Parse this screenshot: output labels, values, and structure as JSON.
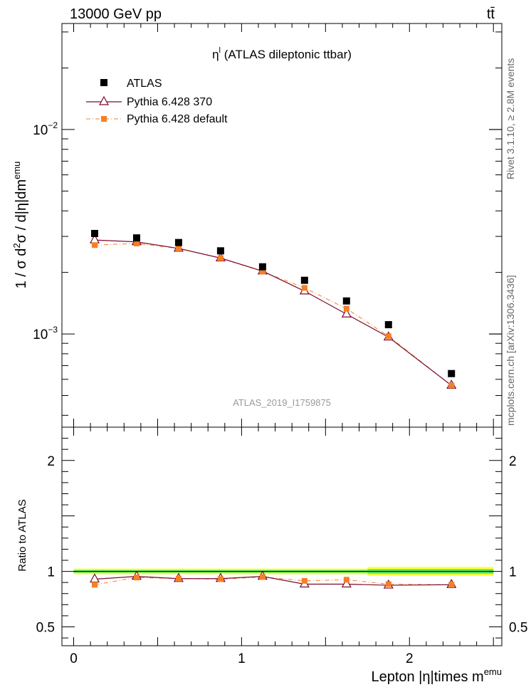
{
  "header": {
    "energy_label": "13000 GeV pp",
    "process_label": "tt̄"
  },
  "side_text": {
    "rivet": "Rivet 3.1.10, ≥ 2.8M events",
    "source": "mcplots.cern.ch [arXiv:1306.3436]"
  },
  "chart_data": [
    {
      "type": "scatter",
      "panel": "main",
      "title_symbol": "η",
      "title_sup": "l",
      "title_text": " (ATLAS dileptonic ttbar)",
      "watermark": "ATLAS_2019_I1759875",
      "yscale": "log",
      "ylim": [
        0.00035,
        0.033
      ],
      "xlim": [
        -0.07,
        2.55
      ],
      "ylabel": "1 / σ d²σ / d|η|dm^emu",
      "ytick_labels": [
        {
          "value": 0.01,
          "base": "10",
          "exp": "−2"
        },
        {
          "value": 0.001,
          "base": "10",
          "exp": "−3"
        }
      ],
      "legend_position": "top-left",
      "x": [
        0.125,
        0.375,
        0.625,
        0.875,
        1.125,
        1.375,
        1.625,
        1.875,
        2.25
      ],
      "series": [
        {
          "name": "ATLAS",
          "marker": "square",
          "color": "#000000",
          "values": [
            0.0031,
            0.00295,
            0.0028,
            0.00255,
            0.00213,
            0.00183,
            0.00145,
            0.00111,
            0.00064
          ]
        },
        {
          "name": "Pythia 6.428 370",
          "marker": "triangle-open",
          "line": "solid",
          "color": "#7a0a2e",
          "values": [
            0.00288,
            0.00282,
            0.00262,
            0.00235,
            0.00203,
            0.00162,
            0.00125,
            0.000965,
            0.00056
          ]
        },
        {
          "name": "Pythia 6.428 default",
          "marker": "square-small",
          "line": "dashdot",
          "color": "#f57f27",
          "values": [
            0.00272,
            0.00277,
            0.00262,
            0.00235,
            0.00202,
            0.00168,
            0.00133,
            0.000975,
            0.00056
          ]
        }
      ]
    },
    {
      "type": "line",
      "panel": "ratio",
      "ylabel": "Ratio to ATLAS",
      "xlabel_text": "Lepton |η|times m",
      "xlabel_sup": "emu",
      "ylim": [
        0.33,
        2.3
      ],
      "yticks": [
        0.5,
        1,
        2
      ],
      "ytick_labels": [
        "0.5",
        "1",
        "2"
      ],
      "xticks": [
        0,
        1,
        2
      ],
      "xtick_labels": [
        "0",
        "1",
        "2"
      ],
      "band_colors": {
        "inner": "#33dd66",
        "outer": "#ffff33"
      },
      "x": [
        0.125,
        0.375,
        0.625,
        0.875,
        1.125,
        1.375,
        1.625,
        1.875,
        2.25
      ],
      "series": [
        {
          "name": "Pythia 6.428 370",
          "color": "#7a0a2e",
          "values": [
            0.93,
            0.955,
            0.935,
            0.935,
            0.955,
            0.885,
            0.885,
            0.875,
            0.88
          ]
        },
        {
          "name": "Pythia 6.428 default",
          "color": "#f57f27",
          "values": [
            0.88,
            0.945,
            0.935,
            0.93,
            0.95,
            0.915,
            0.925,
            0.885,
            0.88
          ]
        }
      ]
    }
  ]
}
